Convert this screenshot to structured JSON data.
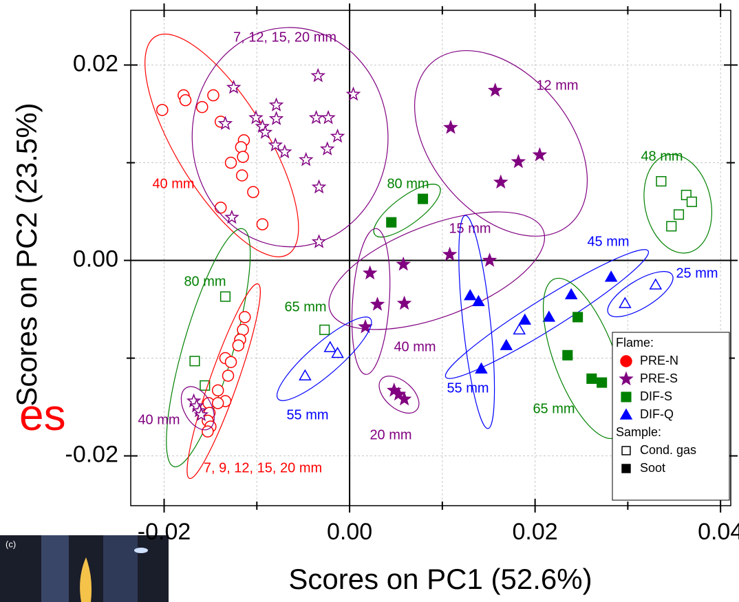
{
  "chart_data": {
    "type": "scatter",
    "xlabel": "Scores on PC1 (52.6%)",
    "ylabel": "Scores on PC2 (23.5%)",
    "xlim": [
      -0.0236,
      0.0411
    ],
    "ylim": [
      -0.0251,
      0.0256
    ],
    "xticks": [
      -0.02,
      {
        "value": 0,
        "label": "0.00"
      },
      0.02,
      0.04
    ],
    "yticks": [
      -0.02,
      {
        "value": 0,
        "label": "0.00"
      },
      {
        "value": 0.02,
        "label": "0.02"
      }
    ],
    "xminor": [
      -0.01,
      0.01,
      0.03
    ],
    "yminor": [
      -0.01,
      0.01
    ],
    "grid": true,
    "legend": {
      "position": "lower-right",
      "title": "Flame:",
      "entries": [
        {
          "name": "PRE-N",
          "color": "#ff0000",
          "marker": "circle"
        },
        {
          "name": "PRE-S",
          "color": "#800080",
          "marker": "star"
        },
        {
          "name": "DIF-S",
          "color": "#008000",
          "marker": "square"
        },
        {
          "name": "DIF-Q",
          "color": "#0000ff",
          "marker": "triangle"
        }
      ],
      "sample_title": "Sample:",
      "samples": [
        {
          "name": "Cond. gas",
          "filled": false
        },
        {
          "name": "Soot",
          "filled": true
        }
      ]
    },
    "groups": [
      {
        "label": "40 mm",
        "flame": 0,
        "filled": [
          false,
          false,
          false,
          false,
          false,
          false,
          false,
          false,
          false,
          false,
          false,
          false,
          false,
          false
        ],
        "x": [
          -0.0202,
          -0.0179,
          -0.0177,
          -0.0159,
          -0.0147,
          -0.0139,
          -0.0114,
          -0.0117,
          -0.0115,
          -0.0128,
          -0.0116,
          -0.0104,
          -0.0139,
          -0.0094
        ],
        "y": [
          0.0154,
          0.0169,
          0.0164,
          0.0157,
          0.0169,
          0.0142,
          0.0123,
          0.0116,
          0.0106,
          0.01,
          0.0087,
          0.007,
          0.0054,
          0.0037
        ]
      },
      {
        "label": "7, 12, 15, 20 mm",
        "flame": 1,
        "filled": [
          false,
          false,
          false,
          false,
          false,
          false,
          false,
          false,
          false,
          false,
          false,
          false,
          false,
          false,
          false,
          false,
          false,
          false,
          false
        ],
        "x": [
          -0.0125,
          -0.0134,
          -0.0127,
          -0.0101,
          -0.0094,
          -0.0091,
          -0.0079,
          -0.0079,
          -0.008,
          -0.007,
          -0.0047,
          -0.0034,
          -0.0036,
          -0.0023,
          -0.0024,
          -0.0013,
          -0.0033,
          -0.0033,
          0.0004
        ],
        "y": [
          0.0177,
          0.014,
          0.0044,
          0.0146,
          0.0137,
          0.0131,
          0.0159,
          0.0145,
          0.0118,
          0.0111,
          0.0103,
          0.0189,
          0.0146,
          0.0146,
          0.0114,
          0.0127,
          0.0075,
          0.0019,
          0.017
        ]
      },
      {
        "label": "12 mm",
        "flame": 1,
        "filled": [
          true,
          true,
          true,
          true,
          true
        ],
        "x": [
          0.0157,
          0.0109,
          0.0182,
          0.0205,
          0.0163
        ],
        "y": [
          0.0174,
          0.0136,
          0.0101,
          0.0108,
          0.008
        ]
      },
      {
        "label": "80 mm",
        "flame": 2,
        "filled": [
          true,
          true
        ],
        "x": [
          0.0045,
          0.0079
        ],
        "y": [
          0.0039,
          0.0063
        ]
      },
      {
        "label": "48 mm",
        "flame": 2,
        "filled": [
          false,
          false,
          false,
          false,
          false
        ],
        "x": [
          0.0336,
          0.0363,
          0.0355,
          0.0369,
          0.0347
        ],
        "y": [
          0.0081,
          0.0067,
          0.0047,
          0.006,
          0.0035
        ]
      },
      {
        "label": "15 mm",
        "flame": 1,
        "filled": [
          true,
          true,
          true,
          true
        ],
        "x": [
          0.0058,
          0.0108,
          0.0151,
          0.0059
        ],
        "y": [
          -0.0004,
          0.0006,
          0.0,
          -0.0044
        ]
      },
      {
        "label": "40 mm",
        "flame": 1,
        "filled": [
          true,
          true,
          true
        ],
        "x": [
          0.0022,
          0.003,
          0.0017
        ],
        "y": [
          -0.0013,
          -0.0045,
          -0.0068
        ]
      },
      {
        "label": "20 mm",
        "flame": 1,
        "filled": [
          true,
          true,
          true
        ],
        "x": [
          0.0048,
          0.0053,
          0.0059
        ],
        "y": [
          -0.0133,
          -0.0137,
          -0.0142
        ]
      },
      {
        "label": "55 mm",
        "flame": 3,
        "filled": [
          true,
          true,
          true
        ],
        "x": [
          0.013,
          0.0139,
          0.0142
        ],
        "y": [
          -0.0036,
          -0.0042,
          -0.0111
        ]
      },
      {
        "label": "45 mm",
        "flame": 3,
        "filled": [
          true,
          true,
          true,
          true,
          true,
          false
        ],
        "x": [
          0.0169,
          0.0189,
          0.0215,
          0.0239,
          0.0282,
          0.0183
        ],
        "y": [
          -0.0087,
          -0.0061,
          -0.0058,
          -0.0035,
          -0.0017,
          -0.0071
        ]
      },
      {
        "label": "25 mm",
        "flame": 3,
        "filled": [
          false,
          false
        ],
        "x": [
          0.0297,
          0.033
        ],
        "y": [
          -0.0044,
          -0.0025
        ]
      },
      {
        "label": "55 mm",
        "flame": 3,
        "filled": [
          false,
          false,
          false
        ],
        "x": [
          -0.0048,
          -0.0021,
          -0.0013
        ],
        "y": [
          -0.0118,
          -0.0089,
          -0.0095
        ]
      },
      {
        "label": "65 mm",
        "flame": 2,
        "filled": [
          false
        ],
        "x": [
          -0.0027
        ],
        "y": [
          -0.0071
        ]
      },
      {
        "label": "65 mm",
        "flame": 2,
        "filled": [
          true,
          true,
          true,
          true
        ],
        "x": [
          0.0246,
          0.0235,
          0.0261,
          0.0272
        ],
        "y": [
          -0.0058,
          -0.0097,
          -0.0121,
          -0.0125
        ]
      },
      {
        "label": "80 mm",
        "flame": 2,
        "filled": [
          false,
          false,
          false
        ],
        "x": [
          -0.0134,
          -0.0167,
          -0.0156
        ],
        "y": [
          -0.0037,
          -0.0103,
          -0.0128
        ]
      },
      {
        "label": "7, 9, 12, 15, 20 mm",
        "flame": 0,
        "filled": [
          false,
          false,
          false,
          false,
          false,
          false,
          false,
          false,
          false,
          false,
          false,
          false,
          false,
          false,
          false
        ],
        "x": [
          -0.0113,
          -0.0115,
          -0.0118,
          -0.012,
          -0.0134,
          -0.0128,
          -0.0131,
          -0.0142,
          -0.0134,
          -0.0152,
          -0.0142,
          -0.0151,
          -0.0153,
          -0.015,
          -0.0153
        ],
        "y": [
          -0.0058,
          -0.0071,
          -0.0081,
          -0.0087,
          -0.01,
          -0.0104,
          -0.0118,
          -0.0133,
          -0.0144,
          -0.0146,
          -0.0146,
          -0.0156,
          -0.0164,
          -0.017,
          -0.0175
        ]
      },
      {
        "label": "40 mm",
        "flame": 1,
        "filled": [
          false,
          false,
          false,
          false
        ],
        "x": [
          -0.0168,
          -0.0165,
          -0.0162,
          -0.016
        ],
        "y": [
          -0.0144,
          -0.0149,
          -0.0154,
          -0.0158
        ]
      }
    ]
  },
  "overlay": {
    "stray_text": "es",
    "inset_label": "(c)"
  }
}
